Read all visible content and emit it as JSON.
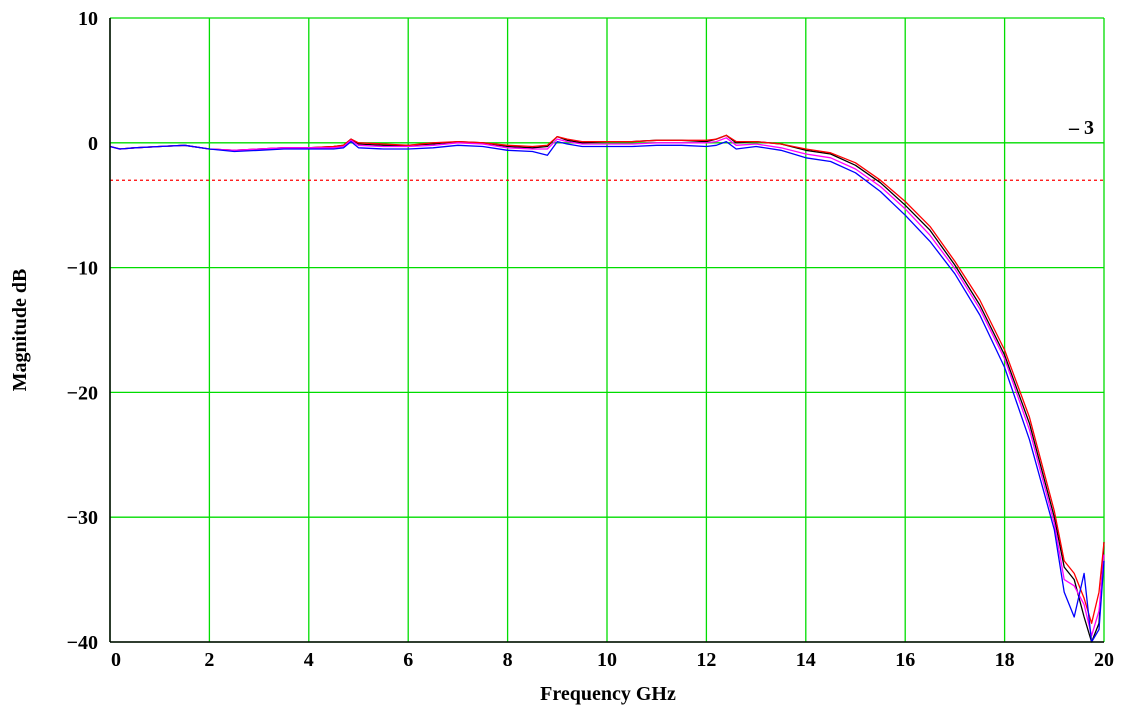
{
  "chart_data": {
    "type": "line",
    "title": "",
    "xlabel": "Frequency GHz",
    "ylabel": "Magnitude dB",
    "xlim": [
      0,
      20
    ],
    "ylim": [
      -40,
      10
    ],
    "x_ticks": [
      0,
      2,
      4,
      6,
      8,
      10,
      12,
      14,
      16,
      18,
      20
    ],
    "y_ticks": [
      10,
      0,
      -10,
      -20,
      -30,
      -40
    ],
    "grid": true,
    "reference_line": {
      "y": -3,
      "label": "– 3",
      "style": "dashed",
      "color": "#ff0000"
    },
    "colors": {
      "grid": "#00dd00",
      "background": "#ffffff"
    },
    "series": [
      {
        "color": "#000000",
        "x": [
          0,
          0.2,
          0.5,
          1,
          1.5,
          2,
          2.5,
          3,
          3.5,
          4,
          4.5,
          4.7,
          4.85,
          5,
          5.5,
          6,
          6.5,
          7,
          7.5,
          8,
          8.5,
          8.8,
          9,
          9.2,
          9.5,
          10,
          10.5,
          11,
          11.5,
          12,
          12.2,
          12.4,
          12.6,
          13,
          13.5,
          14,
          14.5,
          15,
          15.5,
          16,
          16.5,
          17,
          17.5,
          18,
          18.5,
          19,
          19.2,
          19.4,
          19.6,
          19.75,
          19.9,
          20
        ],
        "y": [
          -0.3,
          -0.5,
          -0.4,
          -0.3,
          -0.2,
          -0.5,
          -0.6,
          -0.5,
          -0.4,
          -0.4,
          -0.3,
          -0.2,
          0.3,
          -0.1,
          -0.2,
          -0.2,
          -0.1,
          0.1,
          0,
          -0.3,
          -0.4,
          -0.3,
          0.5,
          0.2,
          0,
          0.1,
          0.1,
          0.2,
          0.2,
          0.1,
          0.3,
          0.6,
          0,
          0.1,
          -0.1,
          -0.6,
          -0.9,
          -1.8,
          -3.2,
          -5.0,
          -7.0,
          -9.8,
          -13.0,
          -17.0,
          -22.5,
          -30.0,
          -34.0,
          -35.0,
          -38.0,
          -40.0,
          -38.5,
          -32.0
        ]
      },
      {
        "color": "#ff0000",
        "x": [
          0,
          0.2,
          0.5,
          1,
          1.5,
          2,
          2.5,
          3,
          3.5,
          4,
          4.5,
          4.7,
          4.85,
          5,
          5.5,
          6,
          6.5,
          7,
          7.5,
          8,
          8.5,
          8.8,
          9,
          9.2,
          9.5,
          10,
          10.5,
          11,
          11.5,
          12,
          12.2,
          12.4,
          12.6,
          13,
          13.5,
          14,
          14.5,
          15,
          15.5,
          16,
          16.5,
          17,
          17.5,
          18,
          18.5,
          19,
          19.2,
          19.4,
          19.6,
          19.75,
          19.9,
          20
        ],
        "y": [
          -0.3,
          -0.5,
          -0.4,
          -0.3,
          -0.2,
          -0.5,
          -0.6,
          -0.5,
          -0.4,
          -0.4,
          -0.3,
          -0.2,
          0.3,
          0,
          -0.1,
          -0.2,
          0,
          0.1,
          0,
          -0.2,
          -0.3,
          -0.2,
          0.5,
          0.3,
          0.1,
          0.1,
          0.1,
          0.2,
          0.2,
          0.2,
          0.3,
          0.6,
          0.1,
          0.1,
          -0.1,
          -0.5,
          -0.8,
          -1.6,
          -3.0,
          -4.7,
          -6.7,
          -9.5,
          -12.6,
          -16.6,
          -22.0,
          -29.5,
          -33.5,
          -34.5,
          -36.5,
          -38.5,
          -36.0,
          -32.0
        ]
      },
      {
        "color": "#ff00ff",
        "x": [
          0,
          0.2,
          0.5,
          1,
          1.5,
          2,
          2.5,
          3,
          3.5,
          4,
          4.5,
          4.7,
          4.85,
          5,
          5.5,
          6,
          6.5,
          7,
          7.5,
          8,
          8.5,
          8.8,
          9,
          9.2,
          9.5,
          10,
          10.5,
          11,
          11.5,
          12,
          12.2,
          12.4,
          12.6,
          13,
          13.5,
          14,
          14.5,
          15,
          15.5,
          16,
          16.5,
          17,
          17.5,
          18,
          18.5,
          19,
          19.2,
          19.4,
          19.6,
          19.75,
          19.9,
          20
        ],
        "y": [
          -0.3,
          -0.5,
          -0.4,
          -0.3,
          -0.2,
          -0.5,
          -0.6,
          -0.5,
          -0.4,
          -0.4,
          -0.4,
          -0.3,
          0.2,
          -0.2,
          -0.3,
          -0.3,
          -0.2,
          0,
          -0.1,
          -0.4,
          -0.5,
          -0.5,
          0.3,
          0.1,
          -0.1,
          -0.1,
          -0.1,
          0,
          0,
          0,
          0.1,
          0.4,
          -0.2,
          -0.1,
          -0.4,
          -0.9,
          -1.2,
          -2.1,
          -3.5,
          -5.3,
          -7.4,
          -10.1,
          -13.3,
          -17.3,
          -23.0,
          -30.5,
          -35.0,
          -35.5,
          -37.0,
          -39.5,
          -37.5,
          -33.0
        ]
      },
      {
        "color": "#0000ff",
        "x": [
          0,
          0.2,
          0.5,
          1,
          1.5,
          2,
          2.5,
          3,
          3.5,
          4,
          4.5,
          4.7,
          4.85,
          5,
          5.5,
          6,
          6.5,
          7,
          7.5,
          8,
          8.5,
          8.8,
          9,
          9.2,
          9.5,
          10,
          10.5,
          11,
          11.5,
          12,
          12.2,
          12.4,
          12.6,
          13,
          13.5,
          14,
          14.5,
          15,
          15.5,
          16,
          16.5,
          17,
          17.5,
          18,
          18.5,
          19,
          19.2,
          19.4,
          19.6,
          19.75,
          19.9,
          20
        ],
        "y": [
          -0.3,
          -0.5,
          -0.4,
          -0.3,
          -0.2,
          -0.5,
          -0.7,
          -0.6,
          -0.5,
          -0.5,
          -0.5,
          -0.4,
          0.1,
          -0.4,
          -0.5,
          -0.5,
          -0.4,
          -0.2,
          -0.3,
          -0.6,
          -0.7,
          -1.0,
          0.1,
          -0.1,
          -0.3,
          -0.3,
          -0.3,
          -0.2,
          -0.2,
          -0.3,
          -0.2,
          0.1,
          -0.5,
          -0.3,
          -0.6,
          -1.2,
          -1.5,
          -2.4,
          -3.9,
          -5.8,
          -7.9,
          -10.5,
          -13.8,
          -18.0,
          -23.8,
          -31.0,
          -36.0,
          -38.0,
          -34.5,
          -40.0,
          -39.0,
          -33.5
        ]
      }
    ]
  }
}
